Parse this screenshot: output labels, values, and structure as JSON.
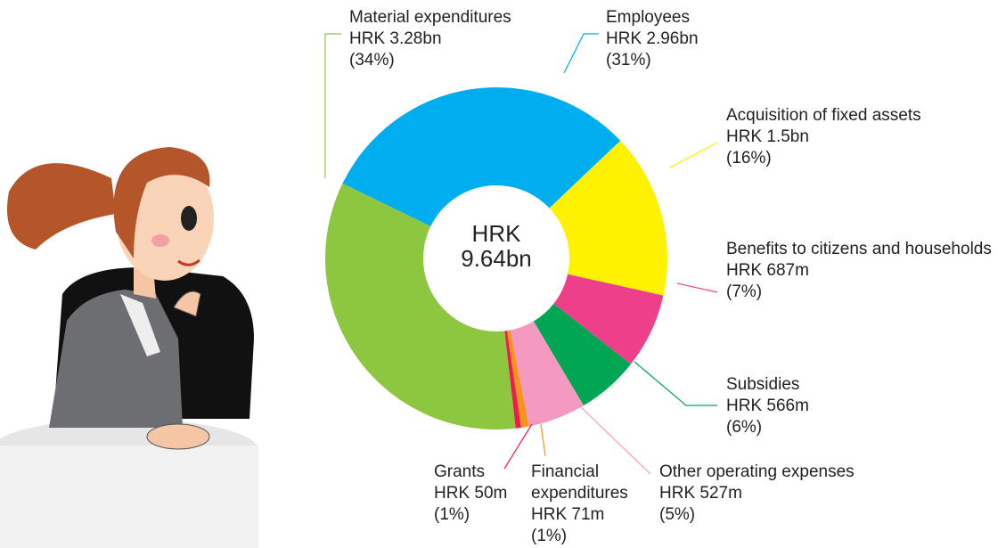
{
  "chart_data": {
    "type": "pie",
    "donut": true,
    "center_label": [
      "HRK",
      "9.64bn"
    ],
    "categories": [
      "Employees",
      "Acquisition of fixed assets",
      "Benefits to citizens and households",
      "Subsidies",
      "Other operating expenses",
      "Financial expenditures",
      "Grants",
      "Material expenditures"
    ],
    "values": [
      2960,
      1500,
      687,
      566,
      527,
      71,
      50,
      3280
    ],
    "value_labels": [
      "HRK 2.96bn",
      "HRK 1.5bn",
      "HRK 687m",
      "HRK 566m",
      "HRK 527m",
      "HRK 71m",
      "HRK 50m",
      "HRK 3.28bn"
    ],
    "percents": [
      31,
      16,
      7,
      6,
      5,
      1,
      1,
      34
    ],
    "percent_labels": [
      "(31%)",
      "(16%)",
      "(7%)",
      "(6%)",
      "(5%)",
      "(1%)",
      "(1%)",
      "(34%)"
    ],
    "colors": [
      "#00aeef",
      "#fff200",
      "#ee3f8b",
      "#00a651",
      "#f49ac1",
      "#f7941d",
      "#ed1c4f",
      "#8dc63f"
    ]
  }
}
